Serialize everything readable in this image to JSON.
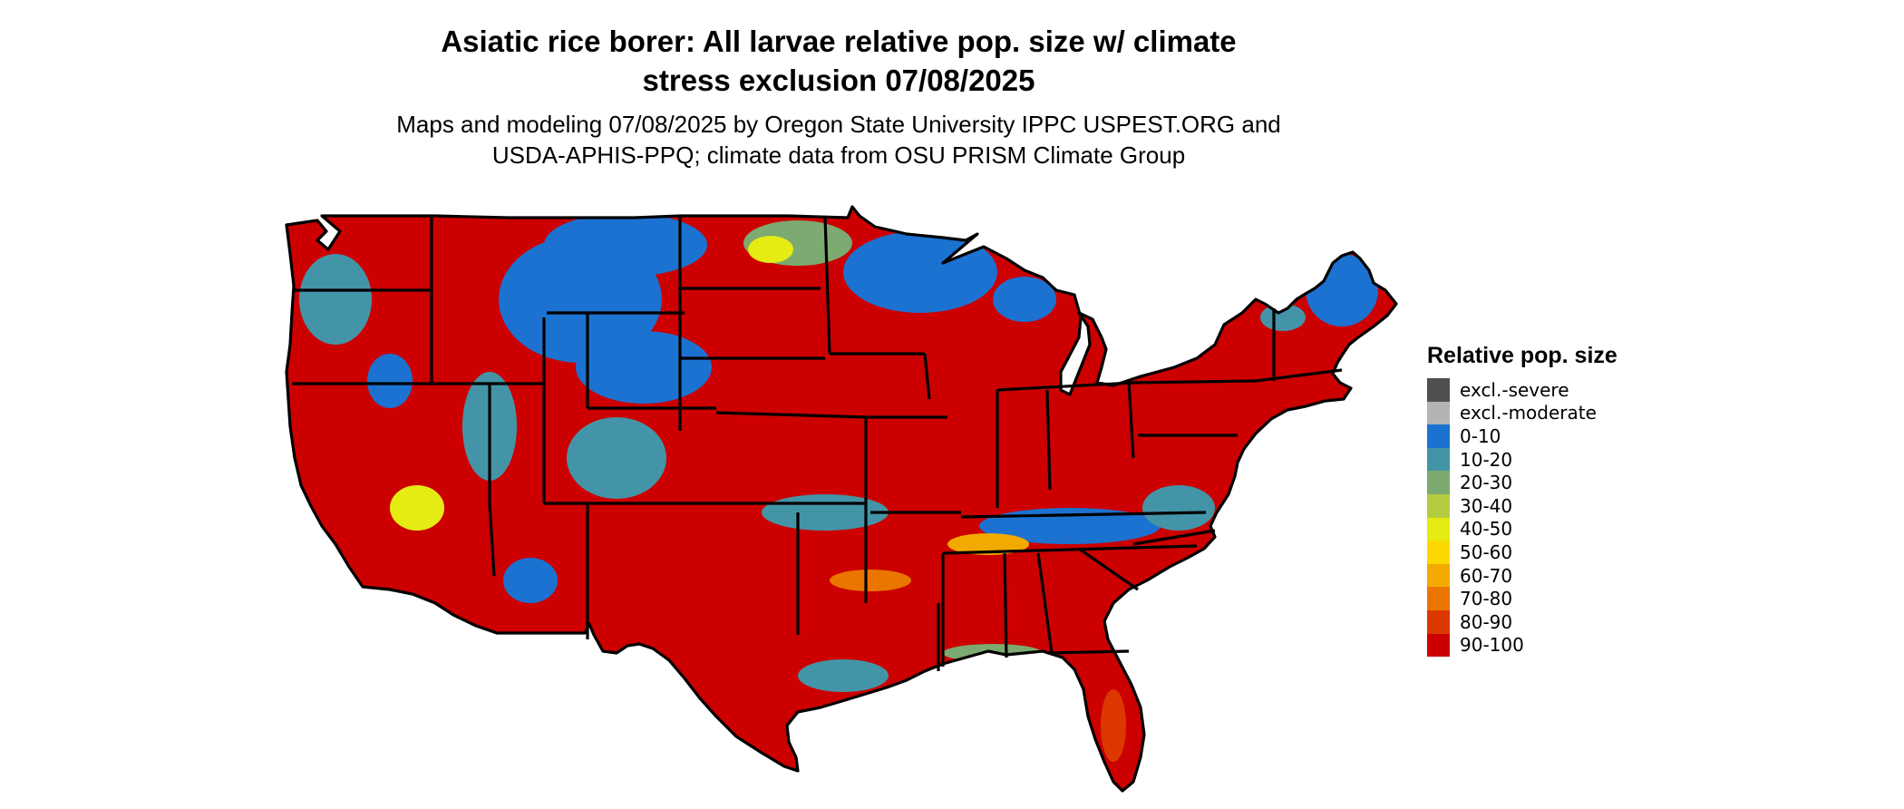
{
  "title_line1": "Asiatic rice borer: All larvae relative pop. size w/ climate",
  "title_line2": "stress exclusion 07/08/2025",
  "subtitle_line1": "Maps and modeling 07/08/2025 by Oregon State University IPPC USPEST.ORG and",
  "subtitle_line2": "USDA-APHIS-PPQ; climate data from OSU PRISM Climate Group",
  "legend": {
    "title": "Relative pop. size",
    "items": [
      {
        "label": "excl.-severe",
        "color": "#505050"
      },
      {
        "label": "excl.-moderate",
        "color": "#b4b4b4"
      },
      {
        "label": "0-10",
        "color": "#1c72d0"
      },
      {
        "label": "10-20",
        "color": "#4494a8"
      },
      {
        "label": "20-30",
        "color": "#7caa70"
      },
      {
        "label": "30-40",
        "color": "#b4cc40"
      },
      {
        "label": "40-50",
        "color": "#e4ec14"
      },
      {
        "label": "50-60",
        "color": "#fad800"
      },
      {
        "label": "60-70",
        "color": "#f2aa00"
      },
      {
        "label": "70-80",
        "color": "#ea7600"
      },
      {
        "label": "80-90",
        "color": "#dc3800"
      },
      {
        "label": "90-100",
        "color": "#cc0000"
      }
    ]
  },
  "map": {
    "region": "Contiguous United States",
    "base_color": "#cc0000",
    "outline_color": "#000000"
  }
}
